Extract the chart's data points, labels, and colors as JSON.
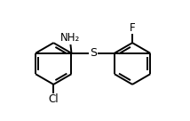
{
  "bg_color": "#ffffff",
  "bond_color": "#000000",
  "text_color": "#000000",
  "fig_width": 2.14,
  "fig_height": 1.36,
  "dpi": 100,
  "nh2_label": "NH₂",
  "cl_label": "Cl",
  "f_label": "F",
  "s_label": "S"
}
